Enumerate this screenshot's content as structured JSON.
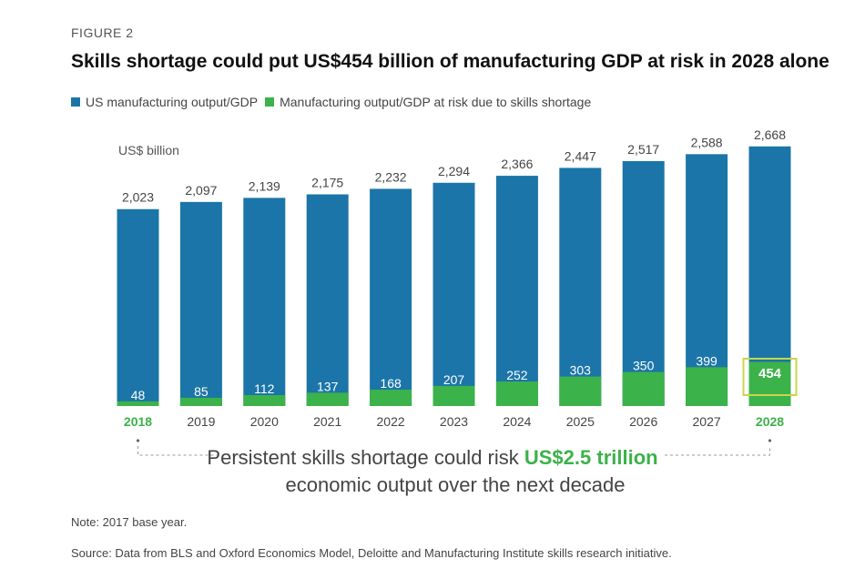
{
  "figure_label": "FIGURE 2",
  "title": "Skills shortage could put US$454 billion of manufacturing GDP at risk in 2028 alone",
  "unit_label": "US$ billion",
  "colors": {
    "total": "#1b75a8",
    "at_risk": "#3cb24a",
    "highlight": "#c8d64a",
    "year_highlight": "#3cb24a"
  },
  "chart_data": {
    "type": "bar",
    "stacked": true,
    "categories": [
      "2018",
      "2019",
      "2020",
      "2021",
      "2022",
      "2023",
      "2024",
      "2025",
      "2026",
      "2027",
      "2028"
    ],
    "series": [
      {
        "name": "US manufacturing output/GDP",
        "values": [
          2023,
          2097,
          2139,
          2175,
          2232,
          2294,
          2366,
          2447,
          2517,
          2588,
          2668
        ],
        "labels": [
          "2,023",
          "2,097",
          "2,139",
          "2,175",
          "2,232",
          "2,294",
          "2,366",
          "2,447",
          "2,517",
          "2,588",
          "2,668"
        ]
      },
      {
        "name": "Manufacturing output/GDP at risk due to skills shortage",
        "values": [
          48,
          85,
          112,
          137,
          168,
          207,
          252,
          303,
          350,
          399,
          454
        ],
        "labels": [
          "48",
          "85",
          "112",
          "137",
          "168",
          "207",
          "252",
          "303",
          "350",
          "399",
          "454"
        ]
      }
    ],
    "highlighted_categories": [
      "2018",
      "2028"
    ],
    "boxed_value": "454",
    "grid": false,
    "legend": "top-left"
  },
  "callout": {
    "line1_prefix": "Persistent skills shortage could risk ",
    "line1_highlight": "US$2.5 trillion",
    "line2": "economic output over the next decade"
  },
  "note": "Note: 2017 base year.",
  "source": "Source: Data from BLS and Oxford Economics Model, Deloitte and Manufacturing Institute skills research initiative."
}
